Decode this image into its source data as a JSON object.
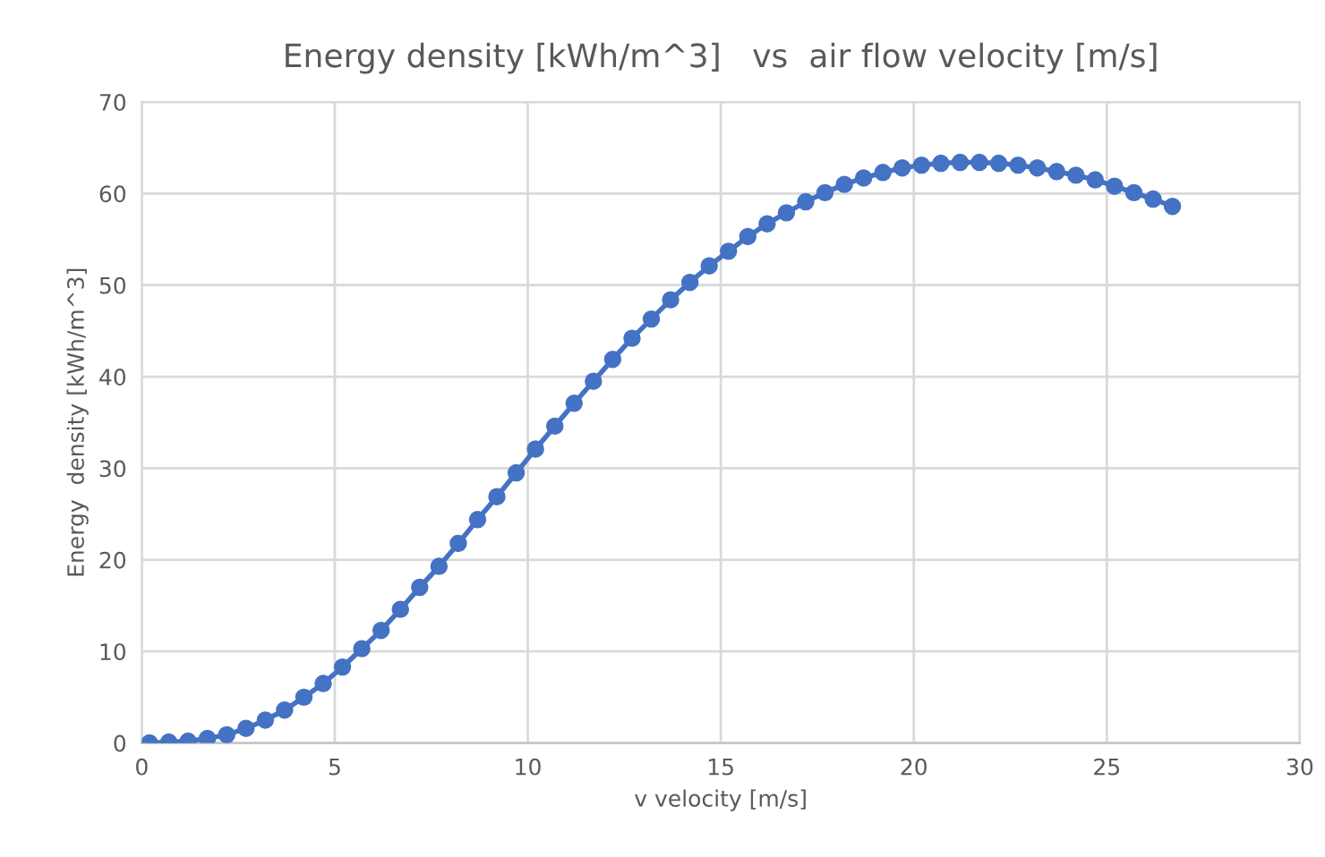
{
  "chart_data": {
    "type": "line",
    "title": "Energy density [kWh/m^3]   vs  air flow velocity [m/s]",
    "xlabel": "v velocity [m/s]",
    "ylabel": "Energy  density [kWh/m^3]",
    "xlim": [
      0,
      30
    ],
    "xticks": [
      0,
      5,
      10,
      15,
      20,
      25,
      30
    ],
    "ylim": [
      0,
      70
    ],
    "yticks": [
      0,
      10,
      20,
      30,
      40,
      50,
      60,
      70
    ],
    "grid": true,
    "marker": "circle",
    "line_style": "solid",
    "series": [
      {
        "color": "#4472c4",
        "x": [
          0.2,
          0.7,
          1.2,
          1.7,
          2.2,
          2.7,
          3.2,
          3.7,
          4.2,
          4.7,
          5.2,
          5.7,
          6.2,
          6.7,
          7.2,
          7.7,
          8.2,
          8.7,
          9.2,
          9.7,
          10.2,
          10.7,
          11.2,
          11.7,
          12.2,
          12.7,
          13.2,
          13.7,
          14.2,
          14.7,
          15.2,
          15.7,
          16.2,
          16.7,
          17.2,
          17.7,
          18.2,
          18.7,
          19.2,
          19.7,
          20.2,
          20.7,
          21.2,
          21.7,
          22.2,
          22.7,
          23.2,
          23.7,
          24.2,
          24.7,
          25.2,
          25.7,
          26.2,
          26.7
        ],
        "values": [
          0.0,
          0.1,
          0.2,
          0.5,
          0.9,
          1.6,
          2.5,
          3.6,
          5.0,
          6.5,
          8.3,
          10.3,
          12.3,
          14.6,
          17.0,
          19.3,
          21.8,
          24.4,
          26.9,
          29.5,
          32.1,
          34.6,
          37.1,
          39.5,
          41.9,
          44.2,
          46.3,
          48.4,
          50.3,
          52.1,
          53.7,
          55.3,
          56.7,
          57.9,
          59.1,
          60.1,
          61.0,
          61.7,
          62.3,
          62.8,
          63.1,
          63.3,
          63.4,
          63.4,
          63.3,
          63.1,
          62.8,
          62.4,
          62.0,
          61.5,
          60.8,
          60.1,
          59.4,
          58.6
        ]
      }
    ]
  }
}
